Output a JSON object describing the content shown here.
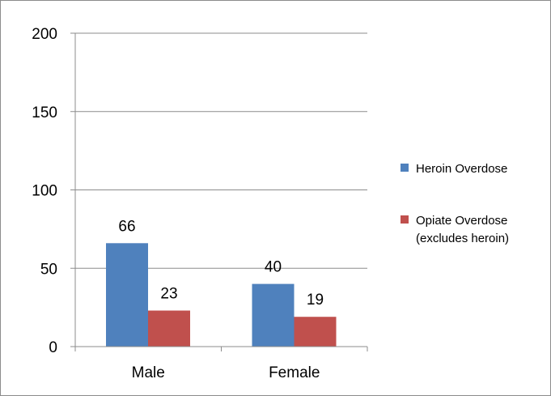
{
  "chart_data": {
    "type": "bar",
    "categories": [
      "Male",
      "Female"
    ],
    "series": [
      {
        "name": "Heroin Overdose",
        "values": [
          66,
          40
        ],
        "color": "#4f81bd"
      },
      {
        "name": "Opiate Overdose (excludes heroin)",
        "values": [
          23,
          19
        ],
        "color": "#c0504d"
      }
    ],
    "ylim": [
      0,
      200
    ],
    "yticks": [
      0,
      50,
      100,
      150,
      200
    ],
    "grid": true,
    "legend_position": "right",
    "title": "",
    "xlabel": "",
    "ylabel": ""
  },
  "legend": {
    "item_1_line_1": "Heroin Overdose",
    "item_2_line_1": "Opiate Overdose",
    "item_2_line_2": "(excludes heroin)"
  }
}
